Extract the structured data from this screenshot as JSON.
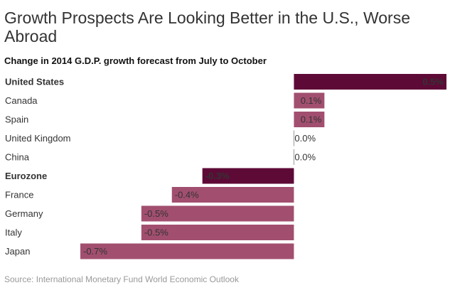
{
  "chart_data": {
    "type": "bar",
    "orientation": "horizontal",
    "title": "Growth Prospects Are Looking Better in the U.S., Worse Abroad",
    "subtitle": "Change in 2014 G.D.P. growth forecast from July to October",
    "source": "Source: International Monetary Fund World Economic Outlook",
    "categories": [
      "United States",
      "Canada",
      "Spain",
      "United Kingdom",
      "China",
      "Eurozone",
      "France",
      "Germany",
      "Italy",
      "Japan"
    ],
    "values": [
      0.5,
      0.1,
      0.1,
      0.0,
      0.0,
      -0.3,
      -0.4,
      -0.5,
      -0.5,
      -0.7
    ],
    "value_labels": [
      "0.5%",
      "0.1%",
      "0.1%",
      "0.0%",
      "0.0%",
      "-0.3%",
      "-0.4%",
      "-0.5%",
      "-0.5%",
      "-0.7%"
    ],
    "colors": [
      "#5e0a37",
      "#a24f6f",
      "#a24f6f",
      "#a24f6f",
      "#a24f6f",
      "#5e0a37",
      "#a24f6f",
      "#a24f6f",
      "#a24f6f",
      "#a24f6f"
    ],
    "bold": [
      true,
      false,
      false,
      false,
      false,
      true,
      false,
      false,
      false,
      false
    ]
  }
}
